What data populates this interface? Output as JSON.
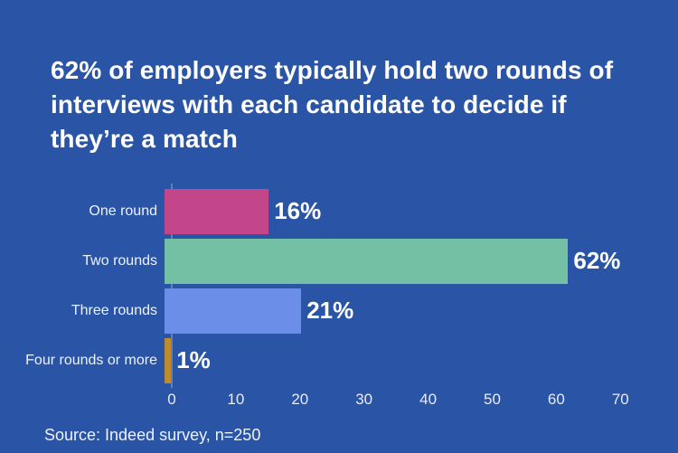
{
  "title": "62% of employers typically hold two rounds of interviews with each candidate to decide if they’re a match",
  "title_lines": [
    "62% of employers typically hold two rounds of",
    "interviews with each candidate to decide if",
    "they’re a match"
  ],
  "source": "Source: Indeed survey, n=250",
  "colors": {
    "background": "#2A55A7",
    "text": "#FFFFFF",
    "bar_one_round": "#C4468A",
    "bar_two_rounds": "#74C0A4",
    "bar_three_rounds": "#6B8FE8",
    "bar_four_rounds_or_more": "#C08A2E"
  },
  "chart_data": {
    "type": "bar",
    "orientation": "horizontal",
    "title": "62% of employers typically hold two rounds of interviews with each candidate to decide if they’re a match",
    "categories": [
      "One round",
      "Two rounds",
      "Three rounds",
      "Four rounds or more"
    ],
    "values": [
      16,
      62,
      21,
      1
    ],
    "value_labels": [
      "16%",
      "62%",
      "21%",
      "1%"
    ],
    "colors": [
      "#C4468A",
      "#74C0A4",
      "#6B8FE8",
      "#C08A2E"
    ],
    "x_ticks": [
      0,
      10,
      20,
      30,
      40,
      50,
      60,
      70
    ],
    "xlim": [
      0,
      70
    ],
    "xlabel": "",
    "ylabel": "",
    "grid": false,
    "legend": false
  }
}
